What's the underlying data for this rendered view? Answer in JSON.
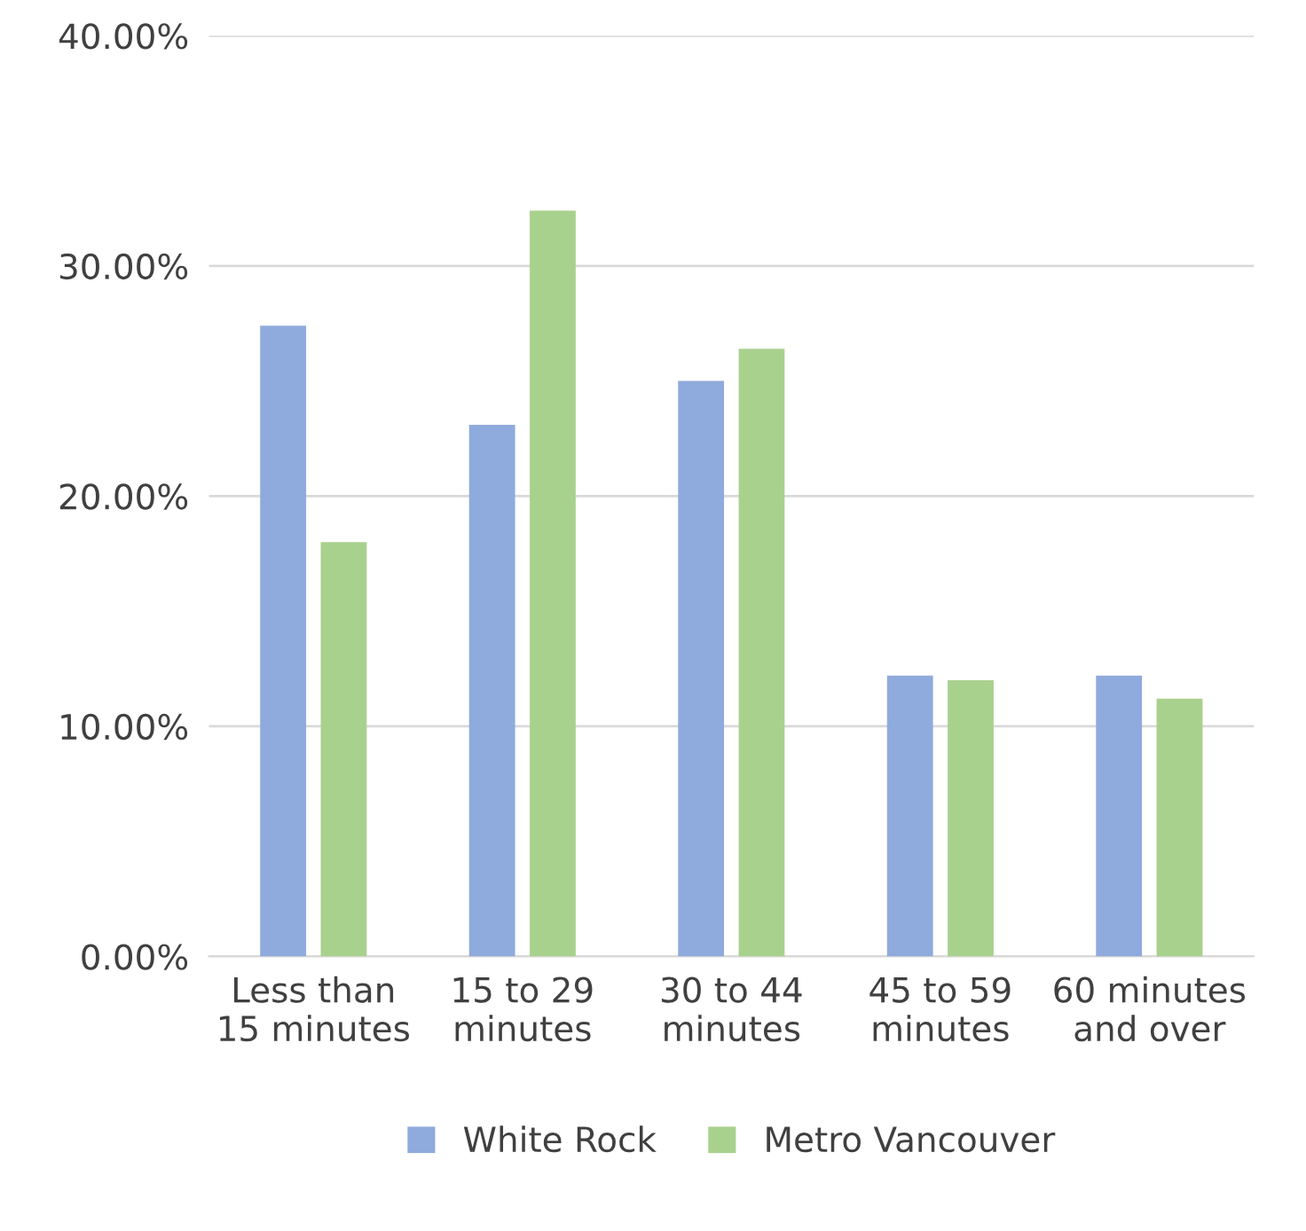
{
  "chart_data": {
    "type": "bar",
    "categories": [
      "Less than\n15 minutes",
      "15 to 29\nminutes",
      "30 to 44\nminutes",
      "45 to 59\nminutes",
      "60 minutes\nand over"
    ],
    "series": [
      {
        "name": "White Rock",
        "color": "#8faadc",
        "values": [
          27.4,
          23.1,
          25.0,
          12.2,
          12.2
        ]
      },
      {
        "name": "Metro Vancouver",
        "color": "#a9d18e",
        "values": [
          18.0,
          32.4,
          26.4,
          12.0,
          11.2
        ]
      }
    ],
    "ylim": [
      0,
      40
    ],
    "yticks": [
      {
        "value": 0,
        "label": "0.00%"
      },
      {
        "value": 10,
        "label": "10.00%"
      },
      {
        "value": 20,
        "label": "20.00%"
      },
      {
        "value": 30,
        "label": "30.00%"
      },
      {
        "value": 40,
        "label": "40.00%"
      }
    ],
    "grid": "y",
    "legend": "bottom"
  }
}
